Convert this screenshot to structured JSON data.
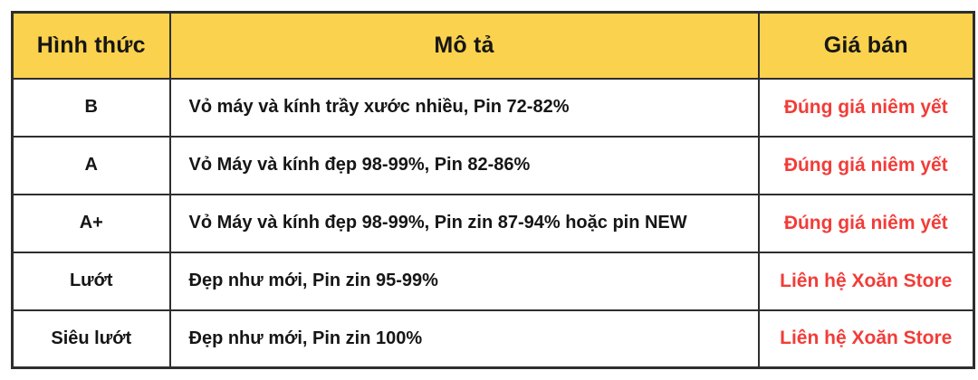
{
  "colors": {
    "header_bg": "#FAD24E",
    "price_text": "#F23C38",
    "border": "#2E2E2E",
    "body_text": "#161616",
    "page_bg": "#FFFFFF"
  },
  "table": {
    "headers": {
      "type": "Hình thức",
      "description": "Mô tả",
      "price": "Giá bán"
    },
    "rows": [
      {
        "type": "B",
        "description": "Vỏ máy và kính trầy xước nhiều, Pin 72-82%",
        "price": "Đúng giá niêm yết"
      },
      {
        "type": "A",
        "description": "Vỏ Máy và kính đẹp 98-99%, Pin 82-86%",
        "price": "Đúng giá niêm yết"
      },
      {
        "type": "A+",
        "description": "Vỏ Máy và kính đẹp 98-99%, Pin zin 87-94% hoặc pin NEW",
        "price": "Đúng giá niêm yết"
      },
      {
        "type": "Lướt",
        "description": "Đẹp như mới, Pin zin 95-99%",
        "price": "Liên hệ Xoăn Store"
      },
      {
        "type": "Siêu lướt",
        "description": "Đẹp như mới, Pin zin 100%",
        "price": "Liên hệ Xoăn Store"
      }
    ]
  }
}
